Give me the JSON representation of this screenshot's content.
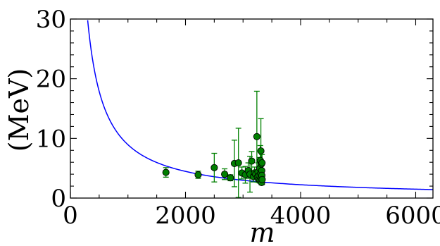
{
  "chart_data": {
    "type": "scatter",
    "title": "",
    "xlabel": "m",
    "ylabel": "(MeV)",
    "xlim": [
      0,
      6300
    ],
    "ylim": [
      0,
      30
    ],
    "x_ticks": [
      0,
      2000,
      4000,
      6000
    ],
    "y_ticks": [
      0,
      10,
      20,
      30
    ],
    "x_tick_labels": [
      "0",
      "2000",
      "4000",
      "6000"
    ],
    "y_tick_labels": [
      "0",
      "10",
      "20",
      "30"
    ],
    "grid": false,
    "colors": {
      "curve": "#0000ff",
      "points": "#007f00",
      "errorbars": "#008000",
      "axes": "#000000"
    },
    "curve": {
      "form": "y = k / x",
      "x": [
        300,
        400,
        500,
        600,
        800,
        1000,
        1200,
        1500,
        2000,
        2500,
        3000,
        3500,
        4000,
        5000,
        6000,
        6300
      ],
      "y": [
        29.8,
        22.4,
        17.9,
        14.9,
        11.2,
        8.95,
        7.46,
        5.97,
        4.48,
        3.58,
        2.98,
        2.56,
        2.24,
        1.79,
        1.49,
        1.42
      ]
    },
    "points": [
      {
        "x": 1660,
        "y": 4.3,
        "yerr_low": 0.8,
        "yerr_high": 0.8
      },
      {
        "x": 2220,
        "y": 3.9,
        "yerr_low": 0.6,
        "yerr_high": 0.6
      },
      {
        "x": 2500,
        "y": 5.1,
        "yerr_low": 2.4,
        "yerr_high": 2.4
      },
      {
        "x": 2680,
        "y": 4.0,
        "yerr_low": 0.9,
        "yerr_high": 0.9
      },
      {
        "x": 2780,
        "y": 3.4,
        "yerr_low": 0.5,
        "yerr_high": 0.5
      },
      {
        "x": 2850,
        "y": 5.8,
        "yerr_low": 3.9,
        "yerr_high": 3.9
      },
      {
        "x": 2920,
        "y": 5.9,
        "yerr_low": 5.8,
        "yerr_high": 5.8
      },
      {
        "x": 2980,
        "y": 4.2,
        "yerr_low": 1.0,
        "yerr_high": 1.0
      },
      {
        "x": 3040,
        "y": 3.9,
        "yerr_low": 1.4,
        "yerr_high": 1.4
      },
      {
        "x": 3090,
        "y": 4.6,
        "yerr_low": 1.3,
        "yerr_high": 1.3
      },
      {
        "x": 3120,
        "y": 4.0,
        "yerr_low": 3.0,
        "yerr_high": 3.0
      },
      {
        "x": 3150,
        "y": 6.2,
        "yerr_low": 1.6,
        "yerr_high": 1.6
      },
      {
        "x": 3180,
        "y": 3.6,
        "yerr_low": 0.9,
        "yerr_high": 0.9
      },
      {
        "x": 3200,
        "y": 4.2,
        "yerr_low": 1.0,
        "yerr_high": 1.0
      },
      {
        "x": 3220,
        "y": 4.0,
        "yerr_low": 0.7,
        "yerr_high": 0.7
      },
      {
        "x": 3240,
        "y": 10.3,
        "yerr_low": 7.6,
        "yerr_high": 7.6
      },
      {
        "x": 3250,
        "y": 3.5,
        "yerr_low": 0.8,
        "yerr_high": 0.8
      },
      {
        "x": 3260,
        "y": 4.4,
        "yerr_low": 1.5,
        "yerr_high": 1.5
      },
      {
        "x": 3270,
        "y": 3.2,
        "yerr_low": 0.6,
        "yerr_high": 0.6
      },
      {
        "x": 3280,
        "y": 3.8,
        "yerr_low": 1.1,
        "yerr_high": 1.1
      },
      {
        "x": 3290,
        "y": 5.0,
        "yerr_low": 1.8,
        "yerr_high": 1.8
      },
      {
        "x": 3295,
        "y": 3.0,
        "yerr_low": 0.5,
        "yerr_high": 0.5
      },
      {
        "x": 3300,
        "y": 6.3,
        "yerr_low": 2.5,
        "yerr_high": 2.5
      },
      {
        "x": 3305,
        "y": 4.1,
        "yerr_low": 1.2,
        "yerr_high": 1.2
      },
      {
        "x": 3310,
        "y": 7.9,
        "yerr_low": 5.4,
        "yerr_high": 5.4
      },
      {
        "x": 3315,
        "y": 3.4,
        "yerr_low": 0.7,
        "yerr_high": 0.7
      },
      {
        "x": 3320,
        "y": 5.7,
        "yerr_low": 2.0,
        "yerr_high": 2.0
      },
      {
        "x": 3322,
        "y": 2.6,
        "yerr_low": 0.4,
        "yerr_high": 0.4
      },
      {
        "x": 3325,
        "y": 4.6,
        "yerr_low": 1.6,
        "yerr_high": 1.6
      },
      {
        "x": 3327,
        "y": 3.8,
        "yerr_low": 1.0,
        "yerr_high": 1.0
      },
      {
        "x": 3330,
        "y": 5.9,
        "yerr_low": 1.4,
        "yerr_high": 1.4
      },
      {
        "x": 3332,
        "y": 3.1,
        "yerr_low": 0.8,
        "yerr_high": 0.8
      }
    ]
  }
}
